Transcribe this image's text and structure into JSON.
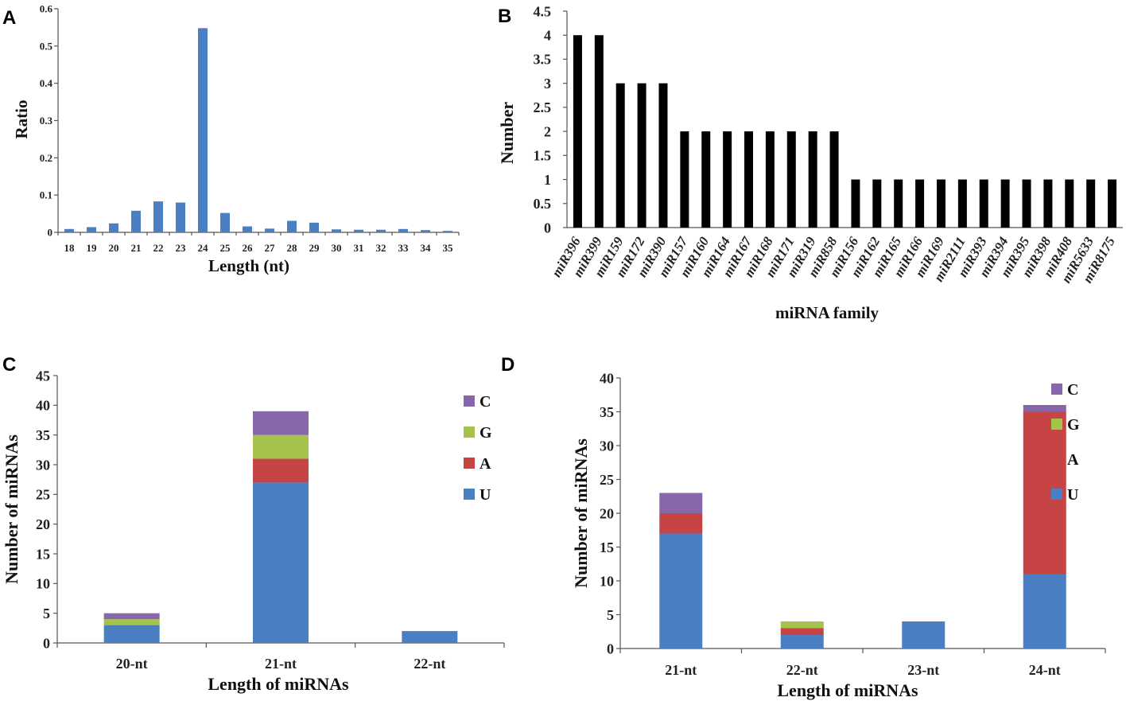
{
  "colors": {
    "blue": "#4a7fc4",
    "black": "#000000",
    "red": "#c64444",
    "green": "#a5c24a",
    "purple": "#8866aa"
  },
  "chart_data": [
    {
      "panel": "A",
      "type": "bar",
      "title": "",
      "xlabel": "Length (nt)",
      "ylabel": "Ratio",
      "ylim": [
        0,
        0.6
      ],
      "yticks": [
        "0",
        "0.1",
        "0.2",
        "0.3",
        "0.4",
        "0.5",
        "0.6"
      ],
      "categories": [
        "18",
        "19",
        "20",
        "21",
        "22",
        "23",
        "24",
        "25",
        "26",
        "27",
        "28",
        "29",
        "30",
        "31",
        "32",
        "33",
        "34",
        "35"
      ],
      "values": [
        0.009,
        0.014,
        0.024,
        0.058,
        0.083,
        0.08,
        0.548,
        0.052,
        0.016,
        0.01,
        0.031,
        0.026,
        0.008,
        0.007,
        0.007,
        0.009,
        0.006,
        0.004
      ]
    },
    {
      "panel": "B",
      "type": "bar",
      "title": "",
      "xlabel": "miRNA family",
      "ylabel": "Number",
      "ylim": [
        0,
        4.5
      ],
      "yticks": [
        "0",
        "0.5",
        "1",
        "1.5",
        "2",
        "2.5",
        "3",
        "3.5",
        "4",
        "4.5"
      ],
      "categories": [
        "miR396",
        "miR399",
        "miR159",
        "miR172",
        "miR390",
        "miR157",
        "miR160",
        "miR164",
        "miR167",
        "miR168",
        "miR171",
        "miR319",
        "miR858",
        "miR156",
        "miR162",
        "miR165",
        "miR166",
        "miR169",
        "miR2111",
        "miR393",
        "miR394",
        "miR395",
        "miR398",
        "miR408",
        "miR5633",
        "miR8175"
      ],
      "values": [
        4,
        4,
        3,
        3,
        3,
        2,
        2,
        2,
        2,
        2,
        2,
        2,
        2,
        1,
        1,
        1,
        1,
        1,
        1,
        1,
        1,
        1,
        1,
        1,
        1,
        1
      ]
    },
    {
      "panel": "C",
      "type": "bar",
      "stacked": true,
      "title": "",
      "xlabel": "Length of miRNAs",
      "ylabel": "Number of miRNAs",
      "ylim": [
        0,
        45
      ],
      "yticks": [
        "0",
        "5",
        "10",
        "15",
        "20",
        "25",
        "30",
        "35",
        "40",
        "45"
      ],
      "categories": [
        "20-nt",
        "21-nt",
        "22-nt"
      ],
      "series": [
        {
          "name": "U",
          "values": [
            3,
            27,
            2
          ]
        },
        {
          "name": "A",
          "values": [
            0,
            4,
            0
          ]
        },
        {
          "name": "G",
          "values": [
            1,
            4,
            0
          ]
        },
        {
          "name": "C",
          "values": [
            1,
            4,
            0
          ]
        }
      ],
      "legend": [
        "C",
        "G",
        "A",
        "U"
      ],
      "legend_position": "right"
    },
    {
      "panel": "D",
      "type": "bar",
      "stacked": true,
      "title": "",
      "xlabel": "Length of miRNAs",
      "ylabel": "Number of miRNAs",
      "ylim": [
        0,
        40
      ],
      "yticks": [
        "0",
        "5",
        "10",
        "15",
        "20",
        "25",
        "30",
        "35",
        "40"
      ],
      "categories": [
        "21-nt",
        "22-nt",
        "23-nt",
        "24-nt"
      ],
      "series": [
        {
          "name": "U",
          "values": [
            17,
            2,
            4,
            11
          ]
        },
        {
          "name": "A",
          "values": [
            3,
            1,
            0,
            24
          ]
        },
        {
          "name": "G",
          "values": [
            0,
            1,
            0,
            0
          ]
        },
        {
          "name": "C",
          "values": [
            3,
            0,
            0,
            1
          ]
        }
      ],
      "legend": [
        "C",
        "G",
        "A",
        "U"
      ],
      "legend_position": "right"
    }
  ]
}
